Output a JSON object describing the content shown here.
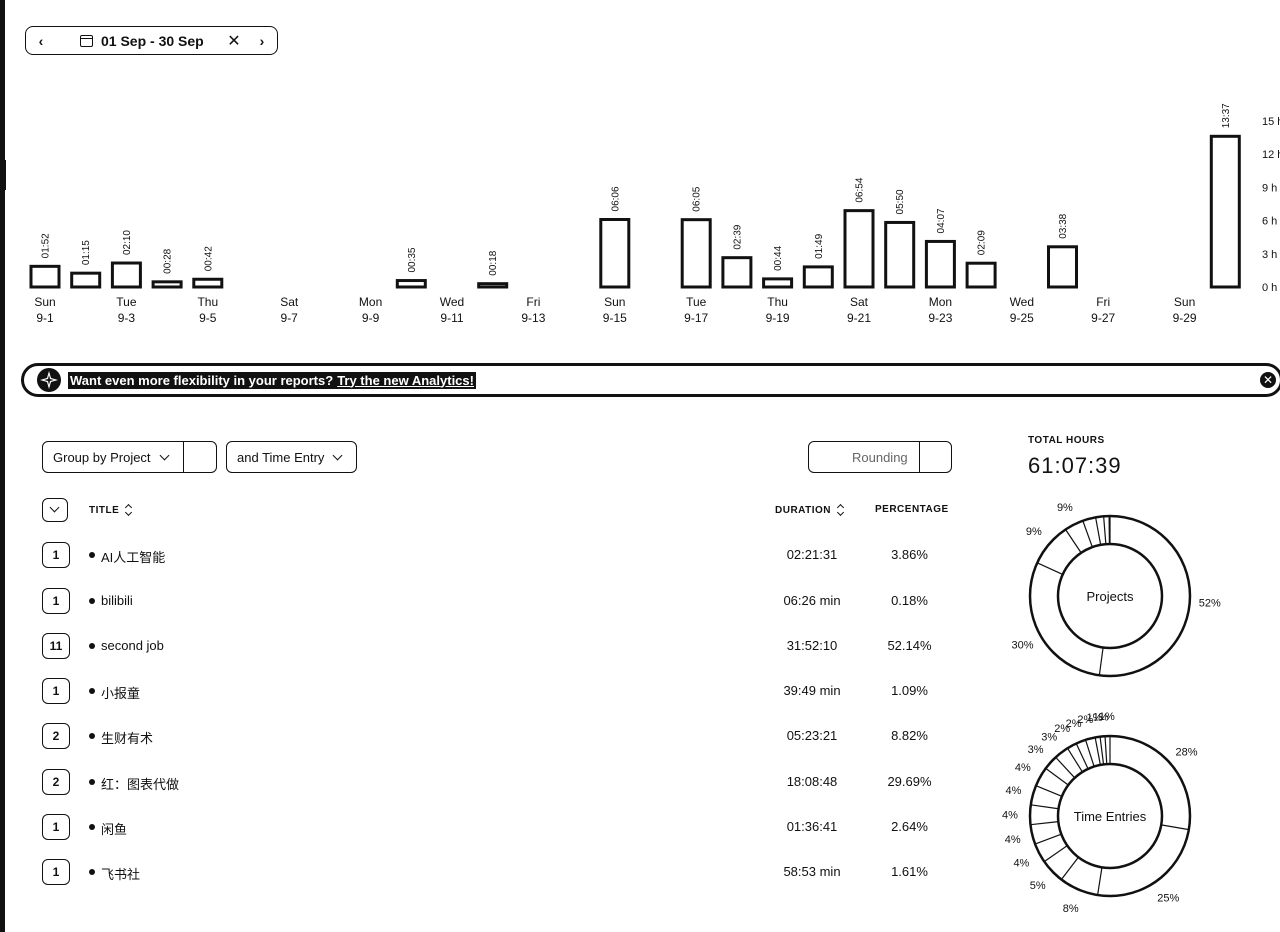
{
  "toolbar": {
    "prev_icon": "chevron-left-icon",
    "calendar_icon": "calendar-icon",
    "date_range": "01 Sep - 30 Sep",
    "clear_icon": "close-icon",
    "next_icon": "chevron-right-icon"
  },
  "chart_data": {
    "type": "bar",
    "x": [
      "9-1",
      "9-2",
      "9-3",
      "9-4",
      "9-5",
      "9-6",
      "9-7",
      "9-8",
      "9-9",
      "9-10",
      "9-11",
      "9-12",
      "9-13",
      "9-14",
      "9-15",
      "9-16",
      "9-17",
      "9-18",
      "9-19",
      "9-20",
      "9-21",
      "9-22",
      "9-23",
      "9-24",
      "9-25",
      "9-26",
      "9-27",
      "9-28",
      "9-29",
      "9-30"
    ],
    "values_hours": [
      1.867,
      1.25,
      2.167,
      0.467,
      0.7,
      0,
      0,
      0,
      0,
      0.583,
      0,
      0.3,
      0,
      0,
      6.1,
      0,
      6.083,
      2.65,
      0.733,
      1.817,
      6.9,
      5.833,
      4.117,
      2.15,
      0,
      3.633,
      0,
      0,
      0,
      13.617
    ],
    "bar_labels": [
      "01:52",
      "01:15",
      "02:10",
      "00:28",
      "00:42",
      "",
      "",
      "",
      "",
      "00:35",
      "",
      "00:18",
      "",
      "",
      "06:06",
      "",
      "06:05",
      "02:39",
      "00:44",
      "01:49",
      "06:54",
      "05:50",
      "04:07",
      "02:09",
      "",
      "03:38",
      "",
      "",
      "",
      "13:37"
    ],
    "x_tick_days": [
      "Sun",
      "Tue",
      "Thu",
      "Sat",
      "Mon",
      "Wed",
      "Fri",
      "Sun",
      "Tue",
      "Thu",
      "Sat",
      "Mon",
      "Wed",
      "Fri",
      "Sun"
    ],
    "x_tick_dates": [
      "9-1",
      "9-3",
      "9-5",
      "9-7",
      "9-9",
      "9-11",
      "9-13",
      "9-15",
      "9-17",
      "9-19",
      "9-21",
      "9-23",
      "9-25",
      "9-27",
      "9-29"
    ],
    "y_ticks": [
      "15 h",
      "12 h",
      "9 h",
      "6 h",
      "3 h",
      "0 h"
    ],
    "ylim": [
      0,
      15
    ],
    "grid": false
  },
  "banner": {
    "icon": "sparkle-icon",
    "message": "Want even more flexibility in your reports?",
    "link": "Try the new Analytics!",
    "close_icon": "close-circle-icon"
  },
  "controls": {
    "group_by": "Group by Project",
    "sub_group": "and Time Entry",
    "rounding": "Rounding"
  },
  "table": {
    "headers": {
      "title": "TITLE",
      "duration": "DURATION",
      "percentage": "PERCENTAGE"
    },
    "rows": [
      {
        "count": "1",
        "name": "AI人工智能",
        "duration": "02:21:31",
        "percentage": "3.86%"
      },
      {
        "count": "1",
        "name": "bilibili",
        "duration": "06:26 min",
        "percentage": "0.18%"
      },
      {
        "count": "11",
        "name": "second job",
        "duration": "31:52:10",
        "percentage": "52.14%"
      },
      {
        "count": "1",
        "name": "小报童",
        "duration": "39:49 min",
        "percentage": "1.09%"
      },
      {
        "count": "2",
        "name": "生财有术",
        "duration": "05:23:21",
        "percentage": "8.82%"
      },
      {
        "count": "2",
        "name": "红：图表代做",
        "duration": "18:08:48",
        "percentage": "29.69%"
      },
      {
        "count": "1",
        "name": "闲鱼",
        "duration": "01:36:41",
        "percentage": "2.64%"
      },
      {
        "count": "1",
        "name": "飞书社",
        "duration": "58:53 min",
        "percentage": "1.61%"
      }
    ]
  },
  "totals": {
    "label": "TOTAL HOURS",
    "value": "61:07:39"
  },
  "projects_donut": {
    "center": "Projects",
    "slices": [
      52.14,
      29.69,
      8.82,
      3.86,
      2.64,
      1.61,
      1.09,
      0.18
    ],
    "labels": [
      "52%",
      "30%",
      "9%",
      "9%"
    ]
  },
  "entries_donut": {
    "center": "Time Entries",
    "slices": [
      28,
      25,
      8,
      5,
      4,
      4,
      4,
      4,
      4,
      3,
      3,
      2,
      2,
      2,
      1,
      1,
      1
    ],
    "labels": [
      "28%",
      "25%",
      "8%",
      "5%",
      "4%",
      "4%",
      "4%",
      "4%",
      "4%",
      "3%",
      "3%",
      "2%",
      "2%",
      "2%",
      "1%",
      "1%",
      "1%"
    ]
  }
}
